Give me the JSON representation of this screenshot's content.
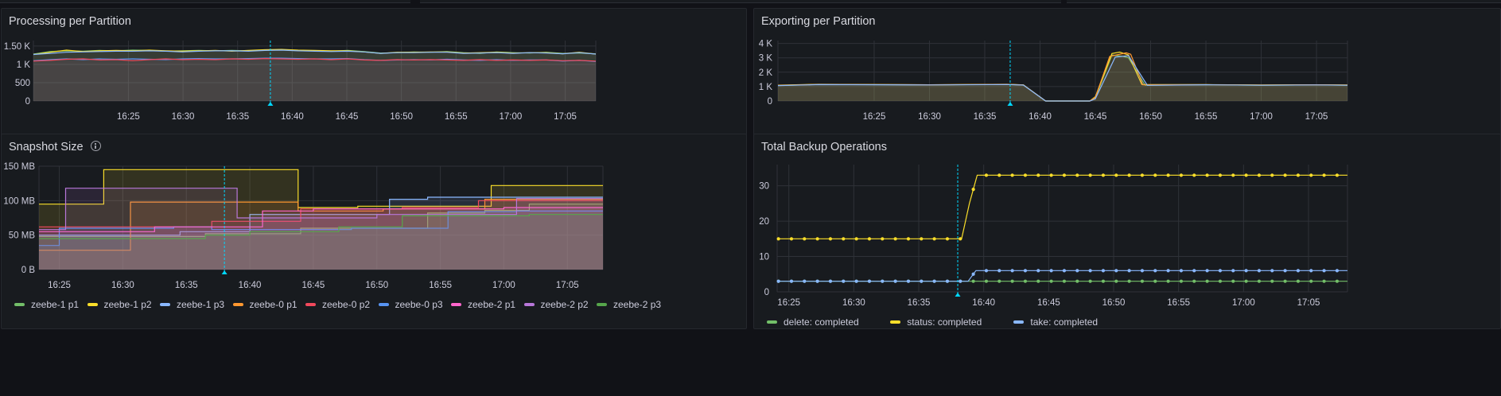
{
  "panels": {
    "processing": {
      "title": "Processing per Partition",
      "chart_data": {
        "type": "area",
        "title": "Processing per Partition",
        "x_ticks": [
          "16:25",
          "16:30",
          "16:35",
          "16:40",
          "16:45",
          "16:50",
          "16:55",
          "17:00",
          "17:05"
        ],
        "y_ticks": [
          "0",
          "500",
          "1 K",
          "1.50 K"
        ],
        "ylim": [
          0,
          1650
        ],
        "xlim_minutes": [
          16.3,
          67.8
        ],
        "grid": true,
        "cursor_at": "16:38",
        "series": [
          {
            "color": "#73bf69",
            "values": [
              1280,
              1350,
              1370,
              1360,
              1380,
              1370,
              1390,
              1380,
              1360,
              1370,
              1380,
              1370,
              1380,
              1370,
              1390,
              1400,
              1380,
              1370,
              1360,
              1380,
              1350,
              1310,
              1320,
              1340,
              1330,
              1350,
              1320,
              1300,
              1340,
              1320,
              1310,
              1330,
              1300,
              1310,
              1290
            ]
          },
          {
            "color": "#fade2a",
            "values": [
              1270,
              1330,
              1390,
              1350,
              1370,
              1380,
              1370,
              1390,
              1370,
              1360,
              1370,
              1380,
              1360,
              1380,
              1400,
              1410,
              1390,
              1380,
              1370,
              1370,
              1340,
              1300,
              1330,
              1330,
              1340,
              1340,
              1310,
              1320,
              1330,
              1310,
              1320,
              1320,
              1290,
              1330,
              1280
            ]
          },
          {
            "color": "#8ab8ff",
            "values": [
              1270,
              1300,
              1330,
              1340,
              1350,
              1360,
              1360,
              1370,
              1360,
              1340,
              1360,
              1370,
              1370,
              1360,
              1380,
              1390,
              1370,
              1360,
              1350,
              1360,
              1340,
              1300,
              1320,
              1320,
              1330,
              1330,
              1300,
              1310,
              1320,
              1300,
              1320,
              1310,
              1290,
              1320,
              1280
            ]
          },
          {
            "color": "#5794f2",
            "values": [
              1100,
              1130,
              1150,
              1130,
              1150,
              1140,
              1150,
              1140,
              1130,
              1150,
              1160,
              1150,
              1150,
              1160,
              1170,
              1170,
              1160,
              1150,
              1150,
              1160,
              1130,
              1110,
              1120,
              1130,
              1120,
              1140,
              1120,
              1110,
              1130,
              1110,
              1120,
              1120,
              1090,
              1110,
              1080
            ]
          },
          {
            "color": "#f2495c",
            "values": [
              1090,
              1110,
              1140,
              1150,
              1120,
              1130,
              1100,
              1130,
              1150,
              1130,
              1140,
              1130,
              1150,
              1140,
              1160,
              1150,
              1140,
              1150,
              1130,
              1150,
              1120,
              1110,
              1130,
              1120,
              1130,
              1120,
              1110,
              1130,
              1110,
              1120,
              1110,
              1120,
              1100,
              1110,
              1090
            ]
          }
        ]
      }
    },
    "exporting": {
      "title": "Exporting per Partition",
      "chart_data": {
        "type": "area",
        "title": "Exporting per Partition",
        "x_ticks": [
          "16:25",
          "16:30",
          "16:35",
          "16:40",
          "16:45",
          "16:50",
          "16:55",
          "17:00",
          "17:05"
        ],
        "y_ticks": [
          "0",
          "1 K",
          "2 K",
          "3 K",
          "4 K"
        ],
        "ylim": [
          0,
          4200
        ],
        "xlim_minutes": [
          16.3,
          67.8
        ],
        "grid": true,
        "cursor_at": "16:37",
        "series": [
          {
            "color": "#73bf69",
            "points": [
              [
                16.3,
                1080
              ],
              [
                20,
                1150
              ],
              [
                30,
                1120
              ],
              [
                37,
                1150
              ],
              [
                38.5,
                1110
              ],
              [
                40.5,
                0
              ],
              [
                44.5,
                0
              ],
              [
                45,
                200
              ],
              [
                46.5,
                3200
              ],
              [
                47.5,
                3100
              ],
              [
                48,
                3000
              ],
              [
                49.5,
                1100
              ],
              [
                55,
                1130
              ],
              [
                60,
                1100
              ],
              [
                65,
                1120
              ],
              [
                67.8,
                1100
              ]
            ]
          },
          {
            "color": "#fade2a",
            "points": [
              [
                16.3,
                1100
              ],
              [
                20,
                1160
              ],
              [
                30,
                1130
              ],
              [
                37,
                1160
              ],
              [
                38.5,
                1120
              ],
              [
                40.5,
                0
              ],
              [
                44.5,
                0
              ],
              [
                45,
                300
              ],
              [
                46.5,
                3300
              ],
              [
                47.2,
                3400
              ],
              [
                48,
                3200
              ],
              [
                49.2,
                1150
              ],
              [
                55,
                1140
              ],
              [
                60,
                1110
              ],
              [
                65,
                1130
              ],
              [
                67.8,
                1110
              ]
            ]
          },
          {
            "color": "#ff9830",
            "points": [
              [
                16.3,
                1090
              ],
              [
                20,
                1150
              ],
              [
                30,
                1125
              ],
              [
                37,
                1155
              ],
              [
                38.5,
                1115
              ],
              [
                40.5,
                0
              ],
              [
                44.5,
                0
              ],
              [
                45,
                250
              ],
              [
                46.3,
                3100
              ],
              [
                47.8,
                3350
              ],
              [
                48.2,
                3250
              ],
              [
                49.3,
                1120
              ],
              [
                55,
                1135
              ],
              [
                60,
                1105
              ],
              [
                65,
                1125
              ],
              [
                67.8,
                1105
              ]
            ]
          },
          {
            "color": "#8ab8ff",
            "points": [
              [
                16.3,
                1070
              ],
              [
                20,
                1140
              ],
              [
                30,
                1115
              ],
              [
                37,
                1145
              ],
              [
                38.5,
                1105
              ],
              [
                40.5,
                0
              ],
              [
                44.5,
                0
              ],
              [
                45,
                150
              ],
              [
                46.8,
                3050
              ],
              [
                48,
                3150
              ],
              [
                49.7,
                1090
              ],
              [
                55,
                1125
              ],
              [
                60,
                1095
              ],
              [
                65,
                1115
              ],
              [
                67.8,
                1095
              ]
            ]
          }
        ]
      }
    },
    "snapshot": {
      "title": "Snapshot Size",
      "chart_data": {
        "type": "area",
        "title": "Snapshot Size",
        "x_ticks": [
          "16:25",
          "16:30",
          "16:35",
          "16:40",
          "16:45",
          "16:50",
          "16:55",
          "17:00",
          "17:05"
        ],
        "y_ticks": [
          "0 B",
          "50 MB",
          "100 MB",
          "150 MB"
        ],
        "ylim": [
          0,
          150
        ],
        "xlim_minutes": [
          23.4,
          67.8
        ],
        "grid": true,
        "legend": "bottom",
        "cursor_at": "16:38",
        "series": [
          {
            "name": "zeebe-1 p1",
            "color": "#73bf69",
            "steps": [
              [
                23.4,
                48
              ],
              [
                36.5,
                52
              ],
              [
                44,
                60
              ],
              [
                50.5,
                60
              ],
              [
                54,
                82
              ],
              [
                58.5,
                86
              ],
              [
                62,
                95
              ],
              [
                67.8,
                95
              ]
            ]
          },
          {
            "name": "zeebe-1 p2",
            "color": "#fade2a",
            "steps": [
              [
                23.4,
                95
              ],
              [
                28.5,
                145
              ],
              [
                43.8,
                90
              ],
              [
                48.5,
                92
              ],
              [
                55,
                92
              ],
              [
                59,
                122
              ],
              [
                67.8,
                122
              ]
            ]
          },
          {
            "name": "zeebe-1 p3",
            "color": "#8ab8ff",
            "steps": [
              [
                23.4,
                50
              ],
              [
                34.5,
                55
              ],
              [
                40,
                80
              ],
              [
                46,
                80
              ],
              [
                51,
                102
              ],
              [
                54,
                105
              ],
              [
                59,
                105
              ],
              [
                67.8,
                105
              ]
            ]
          },
          {
            "name": "zeebe-0 p1",
            "color": "#ff9830",
            "steps": [
              [
                23.4,
                28
              ],
              [
                30.6,
                98
              ],
              [
                39.5,
                98
              ],
              [
                43.8,
                85
              ],
              [
                50.5,
                88
              ],
              [
                58.5,
                102
              ],
              [
                67.8,
                102
              ]
            ]
          },
          {
            "name": "zeebe-0 p2",
            "color": "#f2495c",
            "steps": [
              [
                23.4,
                62
              ],
              [
                31,
                62
              ],
              [
                37,
                70
              ],
              [
                44,
                88
              ],
              [
                52,
                90
              ],
              [
                58,
                100
              ],
              [
                67.8,
                100
              ]
            ]
          },
          {
            "name": "zeebe-0 p3",
            "color": "#5794f2",
            "steps": [
              [
                23.4,
                35
              ],
              [
                25,
                60
              ],
              [
                34,
                62
              ],
              [
                37,
                58
              ],
              [
                48,
                60
              ],
              [
                55.6,
                84
              ],
              [
                61,
                85
              ],
              [
                67.8,
                85
              ]
            ]
          },
          {
            "name": "zeebe-2 p1",
            "color": "#ff66cc",
            "steps": [
              [
                23.4,
                55
              ],
              [
                32.5,
                62
              ],
              [
                37,
                62
              ],
              [
                41,
                85
              ],
              [
                45,
                88
              ],
              [
                52,
                88
              ],
              [
                60,
                90
              ],
              [
                67.8,
                90
              ]
            ]
          },
          {
            "name": "zeebe-2 p2",
            "color": "#b877d9",
            "steps": [
              [
                23.4,
                58
              ],
              [
                25.5,
                118
              ],
              [
                39,
                75
              ],
              [
                44,
                75
              ],
              [
                50,
                80
              ],
              [
                59,
                80
              ],
              [
                61,
                103
              ],
              [
                67.8,
                103
              ]
            ]
          },
          {
            "name": "zeebe-2 p3",
            "color": "#56a64b",
            "steps": [
              [
                23.4,
                45
              ],
              [
                26,
                45
              ],
              [
                36.5,
                50
              ],
              [
                40,
                55
              ],
              [
                47,
                62
              ],
              [
                52,
                78
              ],
              [
                62,
                80
              ],
              [
                67.8,
                80
              ]
            ]
          }
        ]
      }
    },
    "backup": {
      "title": "Total Backup Operations",
      "chart_data": {
        "type": "line",
        "title": "Total Backup Operations",
        "x_ticks": [
          "16:25",
          "16:30",
          "16:35",
          "16:40",
          "16:45",
          "16:50",
          "16:55",
          "17:00",
          "17:05"
        ],
        "y_ticks": [
          "0",
          "10",
          "20",
          "30"
        ],
        "ylim": [
          0,
          36
        ],
        "xlim_minutes": [
          24.1,
          68
        ],
        "grid": true,
        "legend": "bottom",
        "cursor_at": "16:38",
        "series": [
          {
            "name": "delete: completed",
            "color": "#73bf69",
            "points": [
              [
                24.2,
                3
              ],
              [
                39,
                3
              ],
              [
                39.6,
                3
              ],
              [
                68,
                3
              ]
            ]
          },
          {
            "name": "status: completed",
            "color": "#fade2a",
            "points": [
              [
                24.2,
                15
              ],
              [
                38.3,
                15
              ],
              [
                38.9,
                25
              ],
              [
                39.5,
                33
              ],
              [
                68,
                33
              ]
            ]
          },
          {
            "name": "take: completed",
            "color": "#8ab8ff",
            "points": [
              [
                24.2,
                3
              ],
              [
                38.8,
                3
              ],
              [
                39.4,
                6
              ],
              [
                68,
                6
              ]
            ]
          }
        ]
      }
    }
  }
}
